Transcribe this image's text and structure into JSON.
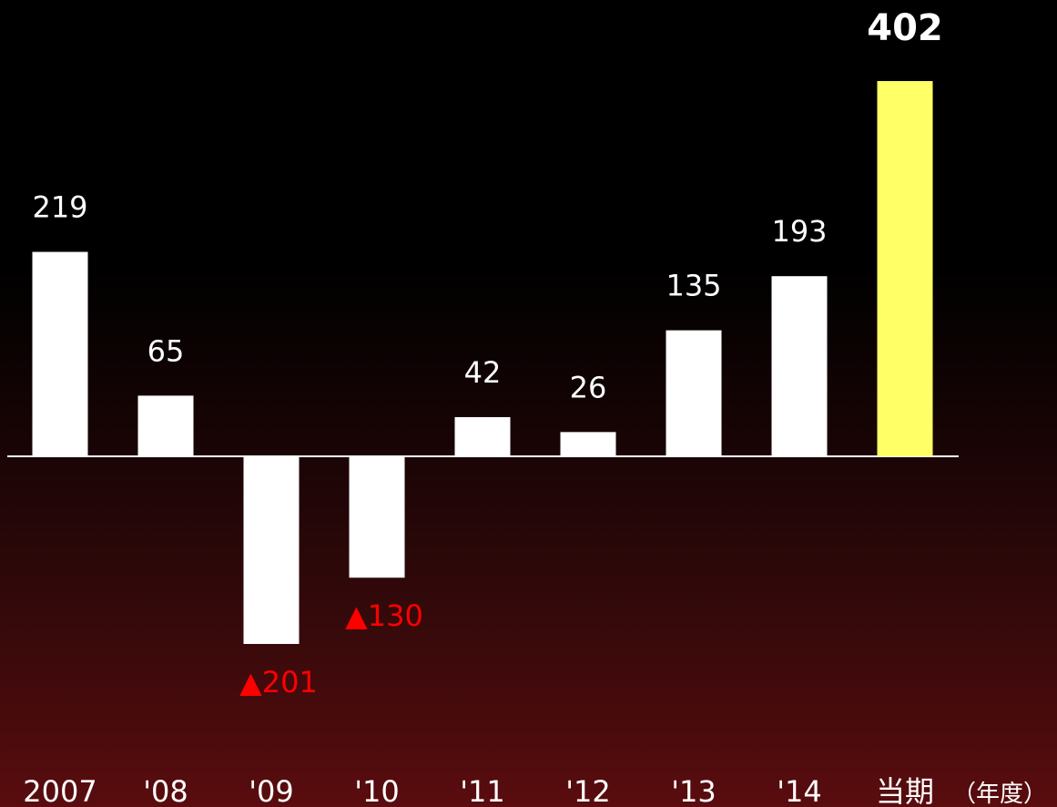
{
  "chart_data": {
    "type": "bar",
    "categories": [
      "2007",
      "'08",
      "'09",
      "'10",
      "'11",
      "'12",
      "'13",
      "'14",
      "当期"
    ],
    "values": [
      219,
      65,
      -201,
      -130,
      42,
      26,
      135,
      193,
      402
    ],
    "value_labels": [
      "219",
      "65",
      "▲201",
      "▲130",
      "42",
      "26",
      "135",
      "193",
      "402"
    ],
    "x_unit_label": "（年度）",
    "ylim": [
      -201,
      402
    ],
    "grid": false,
    "highlight_index": 8
  },
  "colors": {
    "bar": "#ffffff",
    "highlight_bar": "#ffff66",
    "negative_label": "#ff0000",
    "label": "#ffffff",
    "axis": "#ffffff"
  }
}
